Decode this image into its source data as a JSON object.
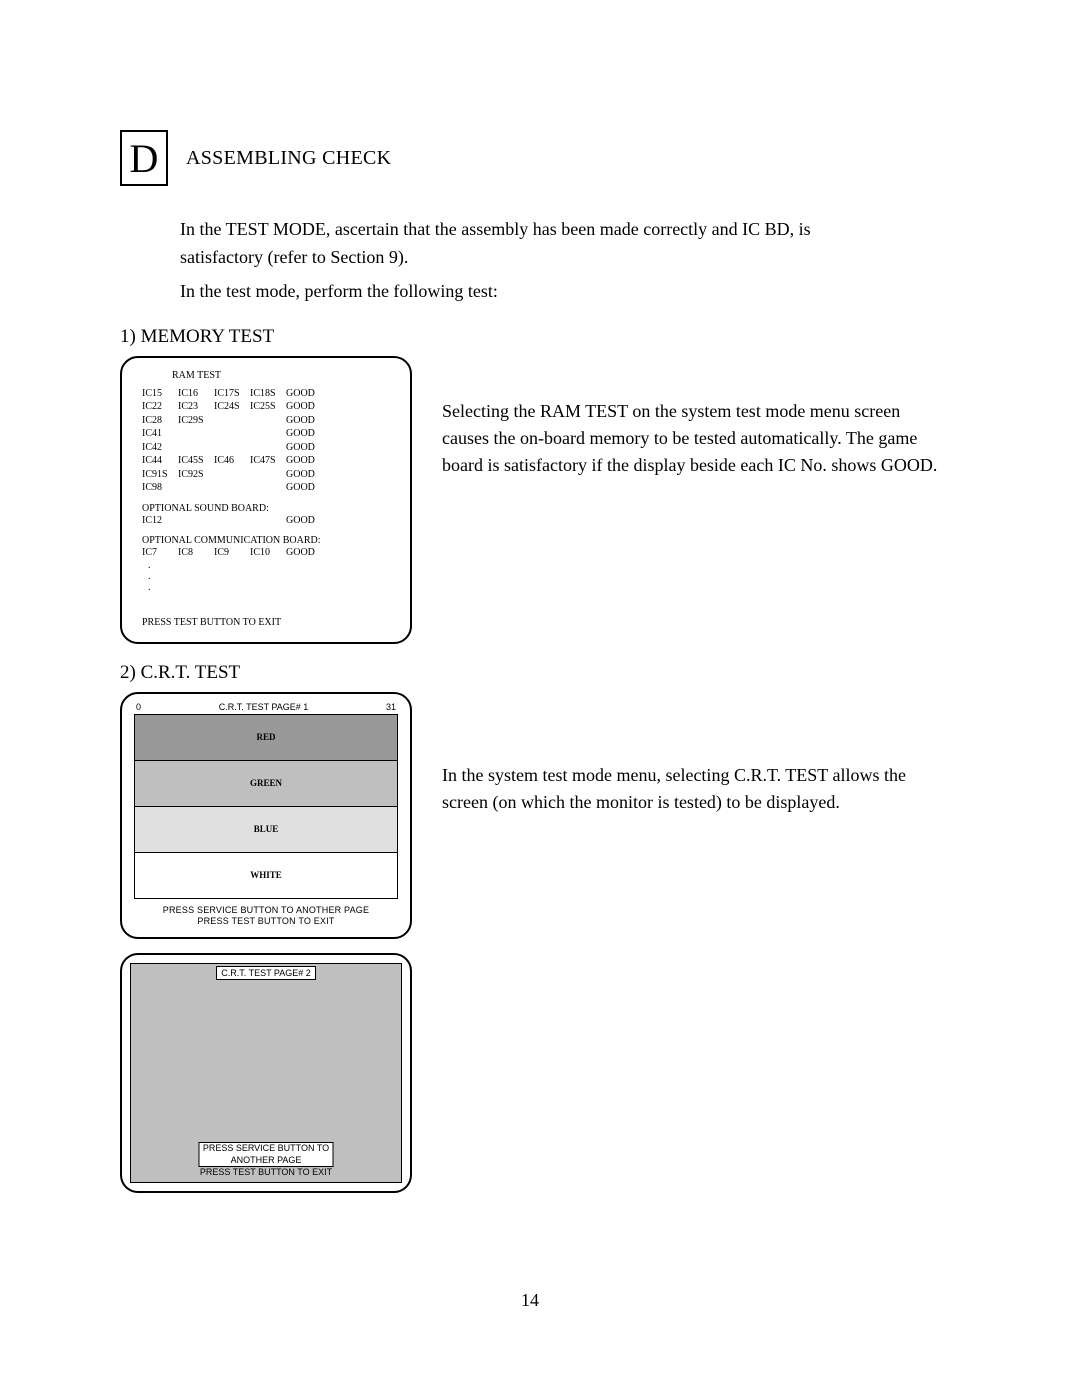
{
  "section": {
    "letter": "D",
    "title": "ASSEMBLING CHECK"
  },
  "intro": {
    "p1a": "In the TEST MODE, ascertain that the assembly has been made correctly and IC BD, is",
    "p1b": "satisfactory (refer to Section 9).",
    "p2": "In the test mode, perform the following test:"
  },
  "memory": {
    "heading": "1) MEMORY TEST",
    "scr_title": "RAM TEST",
    "rows": [
      [
        "IC15",
        "IC16",
        "IC17S",
        "IC18S",
        "GOOD"
      ],
      [
        "IC22",
        "IC23",
        "IC24S",
        "IC25S",
        "GOOD"
      ],
      [
        "IC28",
        "IC29S",
        "",
        "",
        "GOOD"
      ],
      [
        "IC41",
        "",
        "",
        "",
        "GOOD"
      ],
      [
        "IC42",
        "",
        "",
        "",
        "GOOD"
      ],
      [
        "IC44",
        "IC45S",
        "IC46",
        "IC47S",
        "GOOD"
      ],
      [
        "IC91S",
        "IC92S",
        "",
        "",
        "GOOD"
      ],
      [
        "IC98",
        "",
        "",
        "",
        "GOOD"
      ]
    ],
    "opt_sound_label": "OPTIONAL SOUND BOARD:",
    "opt_sound_row": [
      "IC12",
      "",
      "",
      "",
      "GOOD"
    ],
    "opt_comm_label": "OPTIONAL COMMUNICATION BOARD:",
    "opt_comm_row": [
      "IC7",
      "IC8",
      "IC9",
      "IC10",
      "GOOD"
    ],
    "footer": "PRESS TEST BUTTON TO EXIT",
    "desc": "Selecting the RAM TEST on the system test mode menu screen causes the on-board memory to be tested automatically. The game board is satisfactory if the display beside each IC No. shows GOOD."
  },
  "crt": {
    "heading": "2) C.R.T. TEST",
    "page1": {
      "left_num": "0",
      "title": "C.R.T. TEST PAGE# 1",
      "right_num": "31",
      "bands": [
        {
          "label": "RED",
          "bg": "#999999"
        },
        {
          "label": "GREEN",
          "bg": "#bfbfbf"
        },
        {
          "label": "BLUE",
          "bg": "#e0e0e0"
        },
        {
          "label": "WHITE",
          "bg": "#ffffff"
        }
      ],
      "foot1": "PRESS SERVICE BUTTON TO ANOTHER PAGE",
      "foot2": "PRESS TEST BUTTON TO EXIT"
    },
    "page2": {
      "title": "C.R.T. TEST PAGE# 2",
      "bg": "#bfbfbf",
      "foot1": "PRESS SERVICE BUTTON TO ANOTHER PAGE",
      "foot2": "PRESS TEST BUTTON TO EXIT"
    },
    "desc": "In the system test mode menu, selecting C.R.T. TEST allows the screen (on which the monitor is tested) to be displayed."
  },
  "page_number": "14"
}
